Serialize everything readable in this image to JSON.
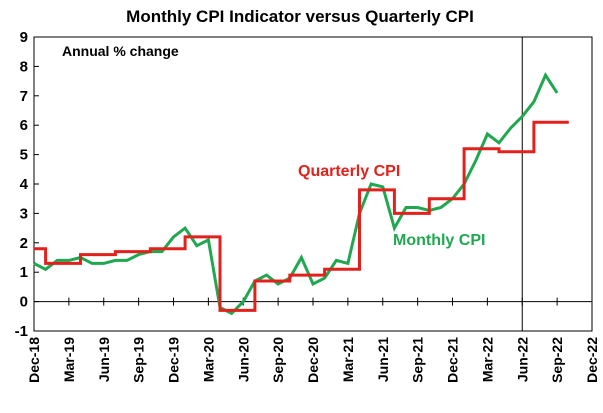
{
  "chart_data": {
    "type": "line",
    "title": "Monthly CPI Indicator versus Quarterly CPI",
    "annotation": "Annual % change",
    "xlabel": "",
    "ylabel": "",
    "ylim": [
      -1,
      9
    ],
    "yticks": [
      "-1",
      "0",
      "1",
      "2",
      "3",
      "4",
      "5",
      "6",
      "7",
      "8",
      "9"
    ],
    "x_range": [
      "Dec-18",
      "Dec-22"
    ],
    "xticks": [
      "Dec-18",
      "Mar-19",
      "Jun-19",
      "Sep-19",
      "Dec-19",
      "Mar-20",
      "Jun-20",
      "Sep-20",
      "Dec-20",
      "Mar-21",
      "Jun-21",
      "Sep-21",
      "Dec-21",
      "Mar-22",
      "Jun-22",
      "Sep-22",
      "Dec-22"
    ],
    "grid": false,
    "reference_line_at": "Jun-22",
    "series": [
      {
        "name": "Monthly CPI",
        "color": "#1fa84f",
        "style": "monthly",
        "label_position": "right-of-line",
        "values": [
          1.3,
          1.1,
          1.4,
          1.4,
          1.5,
          1.3,
          1.3,
          1.4,
          1.4,
          1.6,
          1.7,
          1.7,
          2.2,
          2.5,
          1.9,
          2.1,
          -0.2,
          -0.4,
          0.0,
          0.7,
          0.9,
          0.6,
          0.8,
          1.5,
          0.6,
          0.8,
          1.4,
          1.3,
          3.0,
          4.0,
          3.9,
          2.5,
          3.2,
          3.2,
          3.1,
          3.2,
          3.5,
          4.0,
          4.8,
          5.7,
          5.4,
          5.9,
          6.3,
          6.8,
          7.7,
          7.1
        ]
      },
      {
        "name": "Quarterly CPI",
        "color": "#e3211c",
        "style": "quarterly-step",
        "label_position": "above-line",
        "values": [
          1.8,
          1.3,
          1.6,
          1.7,
          1.8,
          2.2,
          -0.3,
          0.7,
          0.9,
          1.1,
          3.8,
          3.0,
          3.5,
          5.2,
          5.1,
          6.1
        ]
      }
    ]
  }
}
